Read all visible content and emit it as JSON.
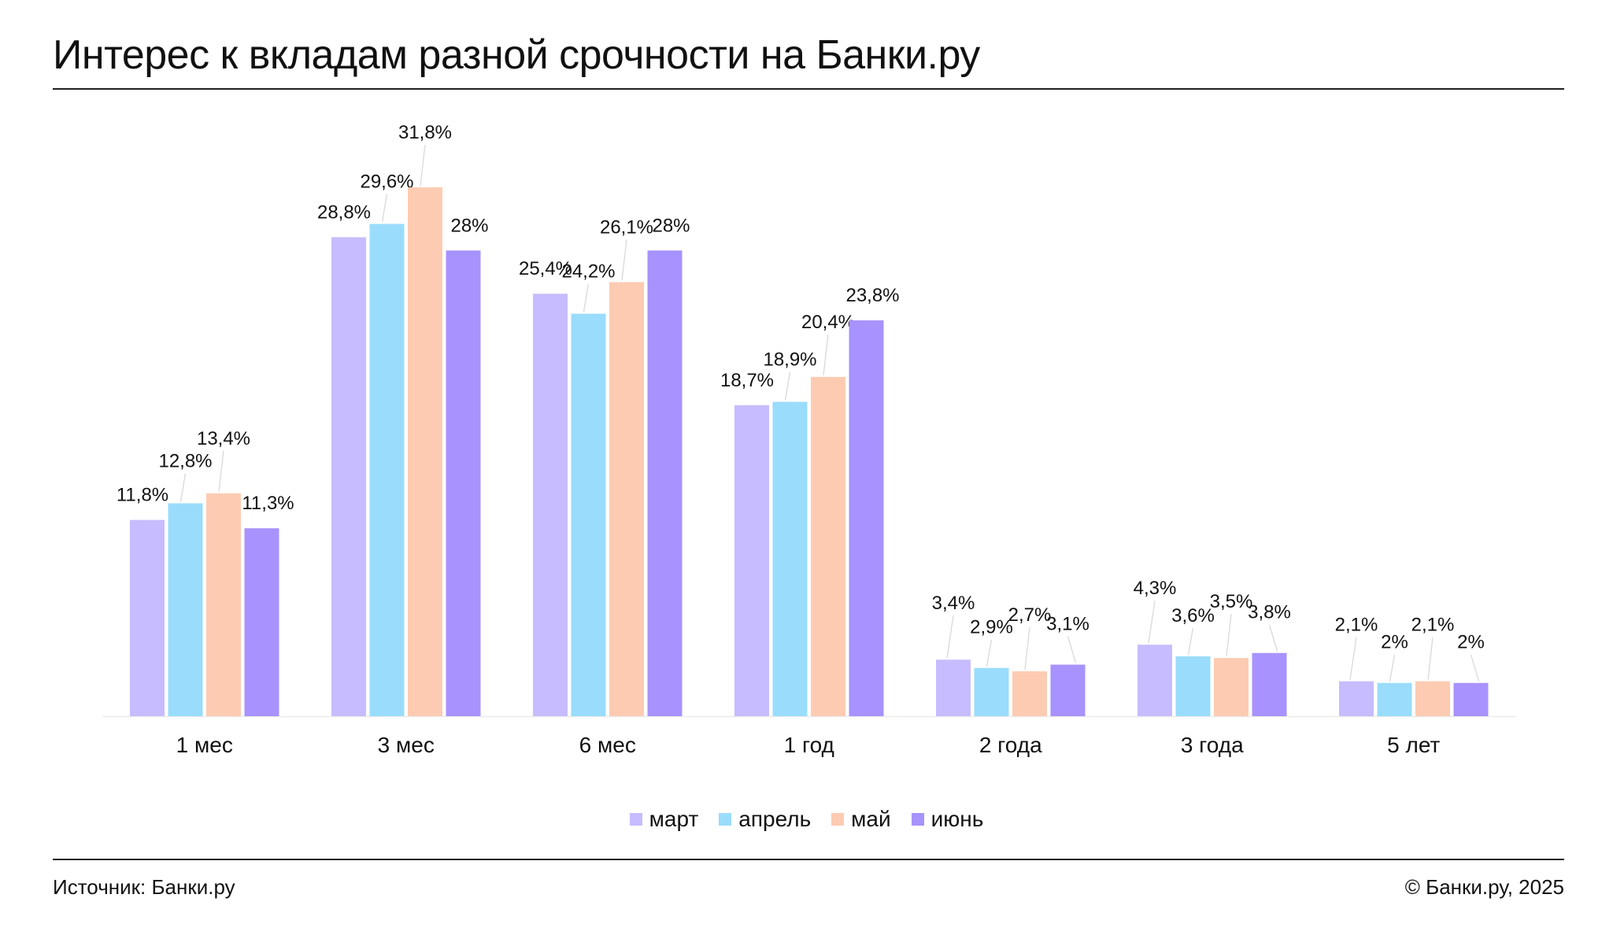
{
  "header": {
    "title": "Интерес к вкладам разной срочности на Банки.ру"
  },
  "footer": {
    "source": "Источник: Банки.ру",
    "copyright": "© Банки.ру, 2025"
  },
  "chart_data": {
    "type": "bar",
    "title": "Интерес к вкладам разной срочности на Банки.ру",
    "xlabel": "",
    "ylabel": "",
    "ylim": [
      0,
      31.8
    ],
    "grid": false,
    "legend_position": "bottom-center",
    "categories": [
      "1 мес",
      "3 мес",
      "6 мес",
      "1 год",
      "2 года",
      "3 года",
      "5 лет"
    ],
    "series": [
      {
        "name": "март",
        "color": "#c7bcff",
        "values": [
          11.8,
          28.8,
          25.4,
          18.7,
          3.4,
          4.3,
          2.1
        ],
        "labels": [
          "11,8%",
          "28,8%",
          "25,4%",
          "18,7%",
          "3,4%",
          "4,3%",
          "2,1%"
        ]
      },
      {
        "name": "апрель",
        "color": "#9adcfb",
        "values": [
          12.8,
          29.6,
          24.2,
          18.9,
          2.9,
          3.6,
          2.0
        ],
        "labels": [
          "12,8%",
          "29,6%",
          "24,2%",
          "18,9%",
          "2,9%",
          "3,6%",
          "2%"
        ]
      },
      {
        "name": "май",
        "color": "#fdcbb2",
        "values": [
          13.4,
          31.8,
          26.1,
          20.4,
          2.7,
          3.5,
          2.1
        ],
        "labels": [
          "13,4%",
          "31,8%",
          "26,1%",
          "20,4%",
          "2,7%",
          "3,5%",
          "2,1%"
        ]
      },
      {
        "name": "июнь",
        "color": "#a892fd",
        "values": [
          11.3,
          28.0,
          28.0,
          23.8,
          3.1,
          3.8,
          2.0
        ],
        "labels": [
          "11,3%",
          "28%",
          "28%",
          "23,8%",
          "3,1%",
          "3,8%",
          "2%"
        ]
      }
    ]
  }
}
